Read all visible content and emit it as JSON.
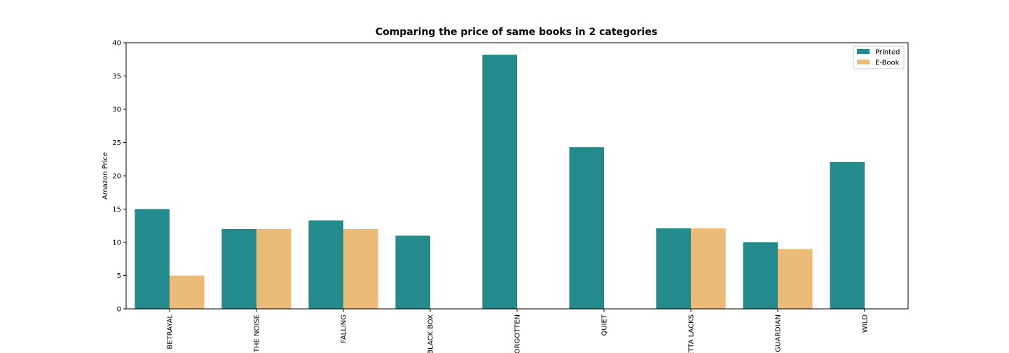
{
  "chart_data": {
    "type": "bar",
    "title": "Comparing the price of same books in 2 categories",
    "y_label": "Amazon Price",
    "categories": [
      "BETRAYAL",
      "THE NOISE",
      "FALLING",
      "BLACK BOX",
      "FORGOTTEN",
      "QUIET",
      "ETTA LACKS",
      "GUARDIAN",
      "WILD"
    ],
    "series": [
      {
        "name": "Printed",
        "color": "#238b8c",
        "values": [
          15,
          12,
          13.3,
          11,
          38.2,
          24.3,
          12.1,
          10,
          22.1
        ]
      },
      {
        "name": "E-Book",
        "color": "#ebbb7a",
        "values": [
          5,
          12,
          12,
          null,
          null,
          null,
          12.1,
          9,
          null
        ]
      }
    ],
    "ylim": [
      0,
      40
    ],
    "yticks": [
      0,
      5,
      10,
      15,
      20,
      25,
      30,
      35,
      40
    ],
    "grid": false,
    "legend": "upper right"
  }
}
